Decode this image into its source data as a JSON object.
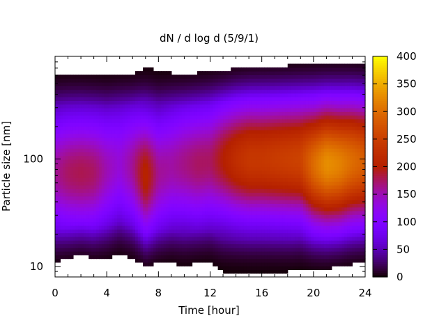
{
  "chart_data": {
    "type": "heatmap",
    "title": "dN / d log d (5/9/1)",
    "xlabel": "Time [hour]",
    "ylabel": "Particle size [nm]",
    "x_range": [
      0,
      24
    ],
    "x_ticks": [
      0,
      4,
      8,
      12,
      16,
      20,
      24
    ],
    "x_tick_labels": [
      "0",
      "4",
      "8",
      "12",
      "16",
      "20",
      "24"
    ],
    "y_scale": "log",
    "y_range": [
      8,
      900
    ],
    "y_ticks": [
      10,
      100
    ],
    "y_tick_labels": [
      "10",
      "100"
    ],
    "colorbar": {
      "range": [
        0,
        400
      ],
      "ticks": [
        0,
        50,
        100,
        150,
        200,
        250,
        300,
        350,
        400
      ],
      "tick_labels": [
        "0",
        "50",
        "100",
        "150",
        "200",
        "250",
        "300",
        "350",
        "400"
      ],
      "colormap": "gnuplot-pm3d",
      "colors": [
        "#000000",
        "#7a00ff",
        "#dd2b2b",
        "#ff9200",
        "#ffff00"
      ]
    },
    "time_hours": [
      0,
      1,
      2,
      3,
      4,
      5,
      6,
      7,
      8,
      9,
      10,
      11,
      12,
      13,
      14,
      15,
      16,
      17,
      18,
      19,
      20,
      21,
      22,
      23,
      24
    ],
    "peak_diameter_nm": [
      75,
      75,
      75,
      75,
      80,
      90,
      85,
      70,
      75,
      85,
      90,
      90,
      95,
      100,
      100,
      100,
      100,
      100,
      100,
      100,
      90,
      90,
      90,
      95,
      95
    ],
    "peak_value": [
      160,
      175,
      180,
      175,
      150,
      135,
      160,
      210,
      160,
      155,
      165,
      175,
      175,
      200,
      225,
      240,
      240,
      245,
      250,
      255,
      300,
      330,
      320,
      300,
      285
    ],
    "lower_size_limit_nm": [
      11,
      12,
      13,
      12,
      12,
      13,
      12,
      10,
      11,
      11,
      10,
      11,
      11,
      9,
      9,
      9,
      9,
      9,
      9,
      9.5,
      9.5,
      9.5,
      10,
      10.5,
      11
    ],
    "upper_size_limit_nm": [
      630,
      630,
      630,
      620,
      600,
      610,
      620,
      710,
      660,
      630,
      610,
      630,
      650,
      660,
      700,
      720,
      730,
      730,
      740,
      750,
      780,
      780,
      790,
      780,
      770
    ]
  }
}
